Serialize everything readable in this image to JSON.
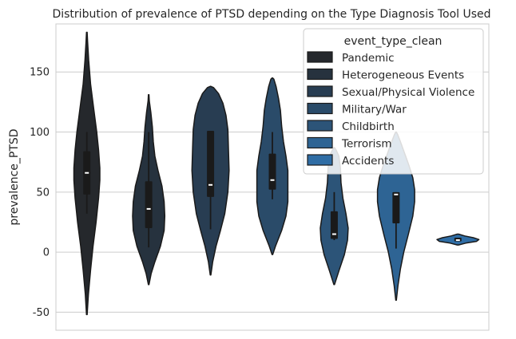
{
  "chart_data": {
    "type": "violin",
    "title": "Distribution of prevalence of PTSD depending on the Type  Diagnosis Tool Used",
    "xlabel": "",
    "ylabel": "prevalence_PTSD",
    "ylim": [
      -65,
      190
    ],
    "yticks": [
      -50,
      0,
      50,
      100,
      150
    ],
    "grid": "horizontal",
    "legend": {
      "title": "event_type_clean",
      "placement": "top-right"
    },
    "series": [
      {
        "name": "Pandemic",
        "color": "#25282c",
        "range": [
          -52,
          183
        ],
        "whisker": [
          32,
          100
        ],
        "box": [
          48,
          84
        ],
        "median": 66,
        "density": [
          [
            -52,
            0.01
          ],
          [
            -35,
            0.05
          ],
          [
            -15,
            0.12
          ],
          [
            5,
            0.2
          ],
          [
            25,
            0.3
          ],
          [
            45,
            0.38
          ],
          [
            60,
            0.42
          ],
          [
            70,
            0.42
          ],
          [
            85,
            0.38
          ],
          [
            100,
            0.32
          ],
          [
            120,
            0.22
          ],
          [
            140,
            0.12
          ],
          [
            160,
            0.06
          ],
          [
            175,
            0.025
          ],
          [
            183,
            0.01
          ]
        ]
      },
      {
        "name": "Heterogeneous Events",
        "color": "#26323e",
        "range": [
          -27,
          131
        ],
        "whisker": [
          4,
          100
        ],
        "box": [
          20,
          59
        ],
        "median": 36,
        "density": [
          [
            -27,
            0.01
          ],
          [
            -18,
            0.08
          ],
          [
            -8,
            0.2
          ],
          [
            5,
            0.38
          ],
          [
            18,
            0.5
          ],
          [
            30,
            0.52
          ],
          [
            42,
            0.5
          ],
          [
            55,
            0.43
          ],
          [
            68,
            0.3
          ],
          [
            80,
            0.2
          ],
          [
            92,
            0.15
          ],
          [
            104,
            0.12
          ],
          [
            116,
            0.07
          ],
          [
            126,
            0.02
          ],
          [
            131,
            0.01
          ]
        ]
      },
      {
        "name": "Sexual/Physical Violence",
        "color": "#283d52",
        "range": [
          -19,
          138
        ],
        "whisker": [
          19,
          101
        ],
        "box": [
          46,
          101
        ],
        "median": 56,
        "density": [
          [
            -19,
            0.01
          ],
          [
            -8,
            0.07
          ],
          [
            5,
            0.18
          ],
          [
            18,
            0.32
          ],
          [
            32,
            0.46
          ],
          [
            50,
            0.56
          ],
          [
            68,
            0.6
          ],
          [
            86,
            0.58
          ],
          [
            102,
            0.56
          ],
          [
            114,
            0.5
          ],
          [
            124,
            0.4
          ],
          [
            132,
            0.26
          ],
          [
            137,
            0.1
          ],
          [
            138,
            0.01
          ]
        ]
      },
      {
        "name": "Military/War",
        "color": "#2a4b69",
        "range": [
          -2,
          145
        ],
        "whisker": [
          44,
          100
        ],
        "box": [
          52,
          82
        ],
        "median": 60,
        "density": [
          [
            -2,
            0.01
          ],
          [
            5,
            0.1
          ],
          [
            18,
            0.3
          ],
          [
            30,
            0.44
          ],
          [
            42,
            0.5
          ],
          [
            55,
            0.5
          ],
          [
            68,
            0.5
          ],
          [
            80,
            0.44
          ],
          [
            92,
            0.36
          ],
          [
            105,
            0.3
          ],
          [
            118,
            0.26
          ],
          [
            128,
            0.2
          ],
          [
            138,
            0.12
          ],
          [
            144,
            0.05
          ],
          [
            145,
            0.01
          ]
        ]
      },
      {
        "name": "Childbirth",
        "color": "#2c5478",
        "range": [
          -27,
          87
        ],
        "whisker": [
          10,
          50
        ],
        "box": [
          11,
          34
        ],
        "median": 15,
        "density": [
          [
            -27,
            0.01
          ],
          [
            -15,
            0.16
          ],
          [
            -2,
            0.33
          ],
          [
            10,
            0.43
          ],
          [
            20,
            0.45
          ],
          [
            32,
            0.38
          ],
          [
            45,
            0.28
          ],
          [
            58,
            0.22
          ],
          [
            70,
            0.2
          ],
          [
            80,
            0.15
          ],
          [
            85,
            0.06
          ],
          [
            87,
            0.01
          ]
        ]
      },
      {
        "name": "Terrorism",
        "color": "#2e6494",
        "range": [
          -40,
          100
        ],
        "whisker": [
          3,
          50
        ],
        "box": [
          24,
          50
        ],
        "median": 48,
        "density": [
          [
            -40,
            0.01
          ],
          [
            -28,
            0.06
          ],
          [
            -14,
            0.14
          ],
          [
            0,
            0.25
          ],
          [
            15,
            0.4
          ],
          [
            30,
            0.54
          ],
          [
            42,
            0.6
          ],
          [
            52,
            0.6
          ],
          [
            62,
            0.54
          ],
          [
            72,
            0.42
          ],
          [
            82,
            0.28
          ],
          [
            92,
            0.14
          ],
          [
            98,
            0.05
          ],
          [
            100,
            0.01
          ]
        ]
      },
      {
        "name": "Accidents",
        "color": "#2f6da5",
        "range": [
          6,
          15
        ],
        "whisker": [
          9,
          12
        ],
        "box": [
          9,
          12
        ],
        "median": 10,
        "density": [
          [
            6,
            0.02
          ],
          [
            7.5,
            0.25
          ],
          [
            9,
            0.6
          ],
          [
            10.5,
            0.68
          ],
          [
            12,
            0.5
          ],
          [
            13.5,
            0.22
          ],
          [
            15,
            0.02
          ]
        ]
      }
    ]
  }
}
